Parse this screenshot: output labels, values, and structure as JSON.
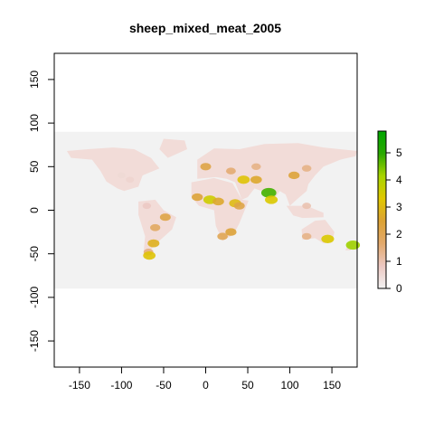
{
  "chart_data": {
    "type": "heatmap",
    "title": "sheep_mixed_meat_2005",
    "xlabel": "",
    "ylabel": "",
    "xlim": [
      -180,
      180
    ],
    "ylim": [
      -180,
      180
    ],
    "raster_extent": {
      "x": [
        -180,
        180
      ],
      "y": [
        -90,
        90
      ]
    },
    "x_ticks": [
      -150,
      -100,
      -50,
      0,
      50,
      100,
      150
    ],
    "y_ticks": [
      -150,
      -100,
      -50,
      0,
      50,
      100,
      150
    ],
    "legend": {
      "placement": "right",
      "min": 0,
      "max": 5.8,
      "ticks": [
        0,
        1,
        2,
        3,
        4,
        5
      ],
      "colors": [
        "#f2f2f2",
        "#ecc8c2",
        "#e2a96c",
        "#dca234",
        "#e0c800",
        "#a8d400",
        "#2aa800",
        "#00a600"
      ]
    },
    "background_color": "#f2f2f2",
    "hotspots": [
      {
        "lon": -60,
        "lat": -20,
        "value": 1.8
      },
      {
        "lon": -62,
        "lat": -38,
        "value": 2.8
      },
      {
        "lon": -68,
        "lat": -48,
        "value": 1.5
      },
      {
        "lon": -67,
        "lat": -52,
        "value": 3.2
      },
      {
        "lon": -48,
        "lat": -8,
        "value": 2.2
      },
      {
        "lon": -70,
        "lat": 5,
        "value": 0.8
      },
      {
        "lon": -100,
        "lat": 40,
        "value": 0.5
      },
      {
        "lon": -90,
        "lat": 35,
        "value": 0.6
      },
      {
        "lon": -10,
        "lat": 15,
        "value": 2.4
      },
      {
        "lon": 5,
        "lat": 12,
        "value": 3.6
      },
      {
        "lon": 15,
        "lat": 10,
        "value": 2.6
      },
      {
        "lon": 35,
        "lat": 8,
        "value": 3.0
      },
      {
        "lon": 40,
        "lat": 5,
        "value": 2.2
      },
      {
        "lon": 30,
        "lat": -25,
        "value": 2.4
      },
      {
        "lon": 20,
        "lat": -30,
        "value": 2.0
      },
      {
        "lon": 45,
        "lat": 35,
        "value": 3.2
      },
      {
        "lon": 60,
        "lat": 35,
        "value": 2.6
      },
      {
        "lon": 75,
        "lat": 20,
        "value": 4.8
      },
      {
        "lon": 78,
        "lat": 12,
        "value": 3.4
      },
      {
        "lon": 105,
        "lat": 40,
        "value": 2.4
      },
      {
        "lon": 0,
        "lat": 50,
        "value": 2.2
      },
      {
        "lon": 30,
        "lat": 45,
        "value": 1.6
      },
      {
        "lon": 60,
        "lat": 50,
        "value": 1.4
      },
      {
        "lon": 120,
        "lat": 48,
        "value": 1.4
      },
      {
        "lon": 145,
        "lat": -33,
        "value": 3.4
      },
      {
        "lon": 120,
        "lat": -30,
        "value": 1.4
      },
      {
        "lon": 175,
        "lat": -40,
        "value": 4.2
      },
      {
        "lon": 120,
        "lat": 5,
        "value": 1.0
      }
    ]
  }
}
